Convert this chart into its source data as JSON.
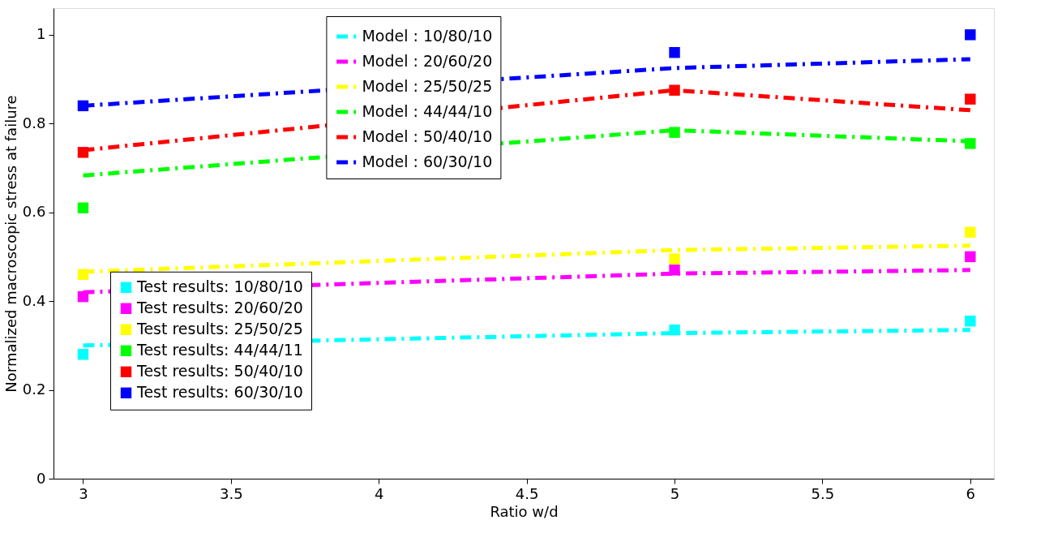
{
  "chart_data": {
    "type": "line",
    "xlabel": "Ratio w/d",
    "ylabel": "Normalized macroscopic stress at failure",
    "xlim": [
      2.9,
      6.08
    ],
    "ylim": [
      0,
      1.06
    ],
    "xticks": [
      3,
      3.5,
      4,
      4.5,
      5,
      5.5,
      6
    ],
    "yticks": [
      0,
      0.2,
      0.4,
      0.6,
      0.8,
      1
    ],
    "grid": false,
    "legend": "top",
    "line_style": "dashed",
    "series": [
      {
        "name": "Model : 10/80/10",
        "color": "#00ffff",
        "x": [
          3,
          5,
          6
        ],
        "values": [
          0.3,
          0.328,
          0.335
        ]
      },
      {
        "name": "Model : 20/60/20",
        "color": "#ff00ff",
        "x": [
          3,
          5,
          6
        ],
        "values": [
          0.42,
          0.462,
          0.47
        ]
      },
      {
        "name": "Model : 25/50/25",
        "color": "#ffff00",
        "x": [
          3,
          5,
          6
        ],
        "values": [
          0.466,
          0.515,
          0.525
        ]
      },
      {
        "name": "Model : 44/44/10",
        "color": "#00ff00",
        "x": [
          3,
          5,
          6
        ],
        "values": [
          0.683,
          0.785,
          0.76
        ]
      },
      {
        "name": "Model : 50/40/10",
        "color": "#ff0000",
        "x": [
          3,
          5,
          6
        ],
        "values": [
          0.74,
          0.875,
          0.83
        ]
      },
      {
        "name": "Model : 60/30/10",
        "color": "#0000ff",
        "x": [
          3,
          5,
          6
        ],
        "values": [
          0.84,
          0.925,
          0.945
        ]
      },
      {
        "name": "Test results: 10/80/10",
        "type": "scatter",
        "marker": "square",
        "color": "#00ffff",
        "x": [
          3,
          5,
          6
        ],
        "values": [
          0.28,
          0.335,
          0.355
        ]
      },
      {
        "name": "Test results: 20/60/20",
        "type": "scatter",
        "marker": "square",
        "color": "#ff00ff",
        "x": [
          3,
          5,
          6
        ],
        "values": [
          0.41,
          0.47,
          0.5
        ]
      },
      {
        "name": "Test results: 25/50/25",
        "type": "scatter",
        "marker": "square",
        "color": "#ffff00",
        "x": [
          3,
          5,
          6
        ],
        "values": [
          0.46,
          0.495,
          0.555
        ]
      },
      {
        "name": "Test results: 44/44/11",
        "type": "scatter",
        "marker": "square",
        "color": "#00ff00",
        "x": [
          3,
          5,
          6
        ],
        "values": [
          0.61,
          0.78,
          0.755
        ]
      },
      {
        "name": "Test results: 50/40/10",
        "type": "scatter",
        "marker": "square",
        "color": "#ff0000",
        "x": [
          3,
          5,
          6
        ],
        "values": [
          0.735,
          0.875,
          0.855
        ]
      },
      {
        "name": "Test results: 60/30/10",
        "type": "scatter",
        "marker": "square",
        "color": "#0000ff",
        "x": [
          3,
          5,
          6
        ],
        "values": [
          0.84,
          0.96,
          1.0
        ]
      }
    ]
  }
}
